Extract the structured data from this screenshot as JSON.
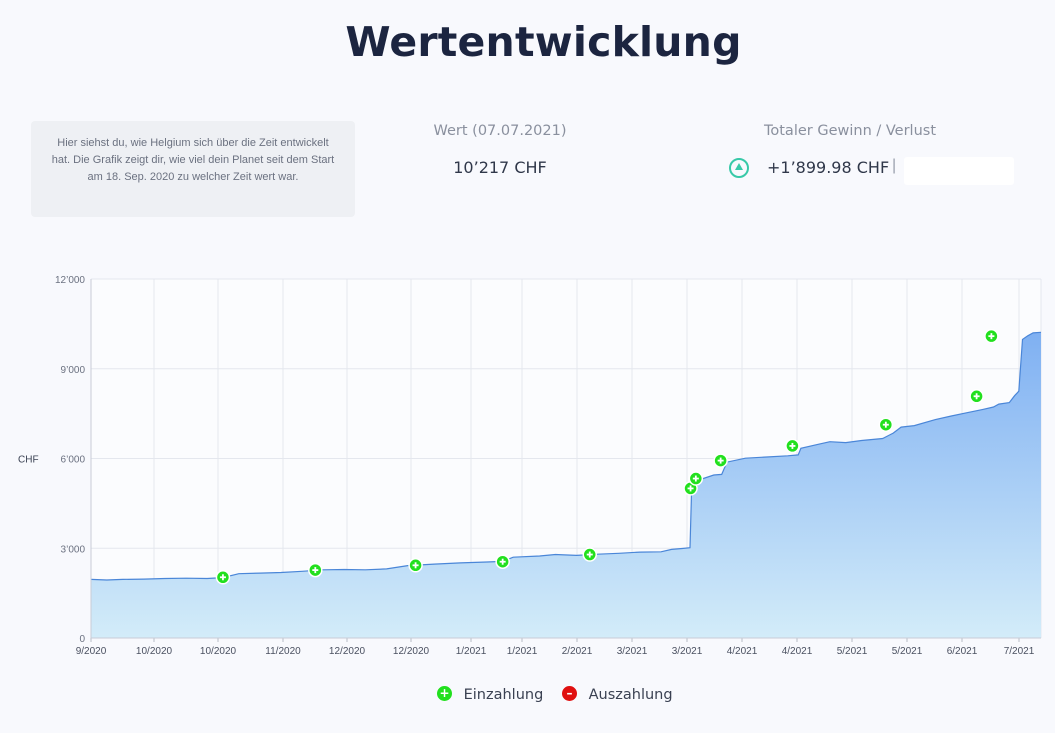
{
  "page": {
    "title": "Wertentwicklung",
    "info_text": "Hier siehst du, wie Helgium sich über die Zeit entwickelt hat. Die Grafik zeigt dir, wie viel dein Planet seit dem Start am 18. Sep. 2020 zu welcher Zeit wert war."
  },
  "stats": {
    "wert_label": "Wert (07.07.2021)",
    "wert_value": "10’217 CHF",
    "gewinn_label": "Totaler Gewinn / Verlust",
    "gewinn_value": "+1’899.98 CHF",
    "separator": "|",
    "gewinn_icon": "triangle-up-icon",
    "gewinn_color": "#38c9a8"
  },
  "legend": {
    "einzahlung": "Einzahlung",
    "auszahlung": "Auszahlung",
    "einzahlung_color": "#22e01e",
    "auszahlung_color": "#e01010"
  },
  "chart_data": {
    "type": "area",
    "ylabel": "CHF",
    "ylim": [
      0,
      12000
    ],
    "y_ticks": [
      0,
      3000,
      6000,
      9000,
      12000
    ],
    "y_tick_labels": [
      "0",
      "3’000",
      "6’000",
      "9’000",
      "12’000"
    ],
    "x_tick_labels": [
      "9/2020",
      "10/2020",
      "10/2020",
      "11/2020",
      "12/2020",
      "12/2020",
      "1/2021",
      "1/2021",
      "2/2021",
      "3/2021",
      "3/2021",
      "4/2021",
      "4/2021",
      "5/2021",
      "5/2021",
      "6/2021",
      "7/2021"
    ],
    "x_range_days": [
      0,
      172
    ],
    "x_tick_days": [
      0,
      10,
      20,
      30,
      40,
      50,
      60,
      70,
      80,
      90,
      100,
      110,
      120,
      130,
      140,
      150,
      160
    ],
    "grid": true,
    "series": [
      {
        "values": [
          [
            0,
            1960
          ],
          [
            3,
            1940
          ],
          [
            6,
            1960
          ],
          [
            10,
            1970
          ],
          [
            14,
            1990
          ],
          [
            18,
            2000
          ],
          [
            22,
            1990
          ],
          [
            25,
            2020
          ],
          [
            28,
            2150
          ],
          [
            32,
            2170
          ],
          [
            36,
            2190
          ],
          [
            40,
            2230
          ],
          [
            44,
            2280
          ],
          [
            48,
            2290
          ],
          [
            52,
            2280
          ],
          [
            56,
            2310
          ],
          [
            60,
            2420
          ],
          [
            65,
            2470
          ],
          [
            70,
            2510
          ],
          [
            75,
            2540
          ],
          [
            78,
            2560
          ],
          [
            80,
            2700
          ],
          [
            85,
            2740
          ],
          [
            88,
            2790
          ],
          [
            92,
            2760
          ],
          [
            96,
            2800
          ],
          [
            100,
            2830
          ],
          [
            104,
            2870
          ],
          [
            108,
            2880
          ],
          [
            110,
            2960
          ],
          [
            112,
            2990
          ],
          [
            113.5,
            3020
          ],
          [
            113.8,
            4950
          ],
          [
            114.5,
            5000
          ],
          [
            115.5,
            5300
          ],
          [
            118,
            5450
          ],
          [
            119.5,
            5470
          ],
          [
            120.5,
            5880
          ],
          [
            124,
            6010
          ],
          [
            128,
            6050
          ],
          [
            132,
            6090
          ],
          [
            134,
            6120
          ],
          [
            134.5,
            6340
          ],
          [
            138,
            6480
          ],
          [
            140,
            6560
          ],
          [
            143,
            6530
          ],
          [
            146,
            6600
          ],
          [
            150,
            6670
          ],
          [
            152,
            6850
          ],
          [
            153.5,
            7050
          ],
          [
            156,
            7100
          ],
          [
            160,
            7300
          ],
          [
            163,
            7420
          ],
          [
            166,
            7530
          ],
          [
            169,
            7640
          ],
          [
            171,
            7720
          ],
          [
            172,
            7820
          ],
          [
            174,
            7870
          ],
          [
            175,
            8100
          ],
          [
            175.8,
            8250
          ],
          [
            176.5,
            9980
          ],
          [
            177.5,
            10100
          ],
          [
            178.5,
            10200
          ],
          [
            180,
            10217
          ]
        ]
      }
    ],
    "markers": [
      {
        "day": 25,
        "value": 2030,
        "type": "Einzahlung"
      },
      {
        "day": 42.5,
        "value": 2270,
        "type": "Einzahlung"
      },
      {
        "day": 61.5,
        "value": 2430,
        "type": "Einzahlung"
      },
      {
        "day": 78,
        "value": 2550,
        "type": "Einzahlung"
      },
      {
        "day": 94.5,
        "value": 2790,
        "type": "Einzahlung"
      },
      {
        "day": 113.6,
        "value": 5000,
        "type": "Einzahlung"
      },
      {
        "day": 114.6,
        "value": 5330,
        "type": "Einzahlung"
      },
      {
        "day": 119.3,
        "value": 5930,
        "type": "Einzahlung"
      },
      {
        "day": 132.9,
        "value": 6420,
        "type": "Einzahlung"
      },
      {
        "day": 150.6,
        "value": 7130,
        "type": "Einzahlung"
      },
      {
        "day": 167.8,
        "value": 8080,
        "type": "Einzahlung"
      },
      {
        "day": 170.6,
        "value": 10090,
        "type": "Einzahlung"
      }
    ]
  }
}
